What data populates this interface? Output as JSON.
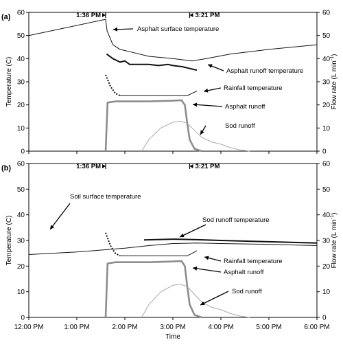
{
  "chart_data": [
    {
      "type": "line",
      "panel_label": "(a)",
      "x_range": [
        "12:00 PM",
        "6:00 PM"
      ],
      "ylabel": "Temperature (C)",
      "ylabel_right": "Flow rate (L min⁻¹)",
      "ylim": [
        0,
        60
      ],
      "ylim_right": [
        0,
        60
      ],
      "yticks": [
        "0",
        "10",
        "20",
        "30",
        "40",
        "50",
        "60"
      ],
      "markers": [
        "1:36 PM",
        "3:21 PM"
      ],
      "series": [
        {
          "name": "Asphalt surface temperature",
          "style": "thin-dark",
          "points": [
            [
              0,
              50
            ],
            [
              1.6,
              57
            ],
            [
              1.63,
              52
            ],
            [
              1.75,
              46
            ],
            [
              1.9,
              44
            ],
            [
              2.1,
              43
            ],
            [
              2.5,
              41
            ],
            [
              3.0,
              40
            ],
            [
              3.4,
              39
            ],
            [
              3.7,
              40
            ],
            [
              4.2,
              42
            ],
            [
              5.0,
              44
            ],
            [
              6.0,
              46
            ]
          ]
        },
        {
          "name": "Asphalt runoff temperature",
          "style": "thick-dark",
          "points": [
            [
              1.62,
              42
            ],
            [
              1.75,
              40
            ],
            [
              1.9,
              38.5
            ],
            [
              2.0,
              39
            ],
            [
              2.1,
              37.5
            ],
            [
              2.3,
              37.5
            ],
            [
              2.5,
              37.5
            ],
            [
              2.7,
              37
            ],
            [
              2.9,
              37.5
            ],
            [
              3.0,
              37
            ],
            [
              3.2,
              36.5
            ],
            [
              3.3,
              36
            ],
            [
              3.4,
              35.5
            ],
            [
              3.5,
              35
            ]
          ]
        },
        {
          "name": "Rainfall temperature",
          "style": "dotted-then-thin",
          "points": [
            [
              1.6,
              33
            ],
            [
              1.7,
              28
            ],
            [
              1.8,
              25
            ],
            [
              1.9,
              24
            ],
            [
              2.5,
              24
            ],
            [
              3.0,
              24
            ],
            [
              3.3,
              24
            ],
            [
              3.4,
              25
            ],
            [
              3.5,
              26
            ]
          ]
        },
        {
          "name": "Asphalt runoff",
          "style": "thick-gray",
          "points": [
            [
              1.6,
              0
            ],
            [
              1.64,
              21
            ],
            [
              1.8,
              21.5
            ],
            [
              2.0,
              21.5
            ],
            [
              2.5,
              21.5
            ],
            [
              3.0,
              21.8
            ],
            [
              3.18,
              22
            ],
            [
              3.25,
              20
            ],
            [
              3.3,
              12
            ],
            [
              3.35,
              5
            ],
            [
              3.45,
              1
            ],
            [
              3.6,
              0
            ]
          ]
        },
        {
          "name": "Sod runoff",
          "style": "thin-gray",
          "points": [
            [
              2.35,
              0
            ],
            [
              2.5,
              5
            ],
            [
              2.75,
              10
            ],
            [
              3.0,
              12.5
            ],
            [
              3.15,
              13
            ],
            [
              3.3,
              12
            ],
            [
              3.45,
              9
            ],
            [
              3.6,
              6
            ],
            [
              3.8,
              4
            ],
            [
              4.0,
              3
            ],
            [
              4.2,
              1.5
            ],
            [
              4.4,
              0.5
            ],
            [
              4.6,
              0
            ]
          ]
        }
      ],
      "annotations": [
        "Asphalt surface temperature",
        "Asphalt runoff temperature",
        "Rainfall temperature",
        "Asphalt runoff",
        "Sod runoff"
      ]
    },
    {
      "type": "line",
      "panel_label": "(b)",
      "xticks": [
        "12:00 PM",
        "1:00 PM",
        "2:00 PM",
        "3:00 PM",
        "4:00 PM",
        "5:00 PM",
        "6:00 PM"
      ],
      "xlabel": "Time",
      "ylabel": "Temperature (C)",
      "ylabel_right": "Flow rate (L min⁻¹)",
      "ylim": [
        0,
        60
      ],
      "ylim_right": [
        0,
        60
      ],
      "yticks": [
        "0",
        "10",
        "20",
        "30",
        "40",
        "50",
        "60"
      ],
      "markers": [
        "1:36 PM",
        "3:21 PM"
      ],
      "series": [
        {
          "name": "Soil surface temperature",
          "style": "thin-dark",
          "points": [
            [
              0,
              24.5
            ],
            [
              1.0,
              25.5
            ],
            [
              2.0,
              27
            ],
            [
              2.5,
              28
            ],
            [
              3.0,
              28.8
            ],
            [
              3.5,
              29
            ],
            [
              4.0,
              28.8
            ],
            [
              5.0,
              28.5
            ],
            [
              6.0,
              28
            ]
          ]
        },
        {
          "name": "Sod runoff temperature",
          "style": "thick-dark",
          "points": [
            [
              2.4,
              30.2
            ],
            [
              3.0,
              30.5
            ],
            [
              3.5,
              30.3
            ],
            [
              4.0,
              30
            ],
            [
              5.0,
              29.5
            ],
            [
              6.0,
              29
            ]
          ]
        },
        {
          "name": "Rainfall temperature",
          "style": "dotted-then-thin",
          "points": [
            [
              1.6,
              33
            ],
            [
              1.7,
              28
            ],
            [
              1.8,
              25
            ],
            [
              1.9,
              24
            ],
            [
              2.5,
              24
            ],
            [
              3.0,
              24
            ],
            [
              3.3,
              24
            ],
            [
              3.4,
              25
            ],
            [
              3.5,
              26
            ]
          ]
        },
        {
          "name": "Asphalt runoff",
          "style": "thick-gray",
          "points": [
            [
              1.6,
              0
            ],
            [
              1.64,
              21
            ],
            [
              1.8,
              21.5
            ],
            [
              2.0,
              21.5
            ],
            [
              2.5,
              21.5
            ],
            [
              3.0,
              21.8
            ],
            [
              3.18,
              22
            ],
            [
              3.25,
              20
            ],
            [
              3.3,
              12
            ],
            [
              3.35,
              5
            ],
            [
              3.45,
              1
            ],
            [
              3.6,
              0
            ]
          ]
        },
        {
          "name": "Sod runoff",
          "style": "thin-gray",
          "points": [
            [
              2.35,
              0
            ],
            [
              2.5,
              5
            ],
            [
              2.75,
              10
            ],
            [
              3.0,
              12.5
            ],
            [
              3.15,
              13
            ],
            [
              3.3,
              12
            ],
            [
              3.45,
              9
            ],
            [
              3.6,
              6
            ],
            [
              3.8,
              4
            ],
            [
              4.0,
              3
            ],
            [
              4.2,
              1.5
            ],
            [
              4.4,
              0.5
            ],
            [
              4.6,
              0
            ]
          ]
        }
      ],
      "annotations": [
        "Soil surface temperature",
        "Sod runoff temperature",
        "Rainfall temperature",
        "Asphalt runoff",
        "Sod runoff"
      ]
    }
  ],
  "colors": {
    "axis": "#000000",
    "dark": "#111111",
    "thick_gray": "#8c8c8c",
    "thin_gray": "#a8a8a8"
  }
}
